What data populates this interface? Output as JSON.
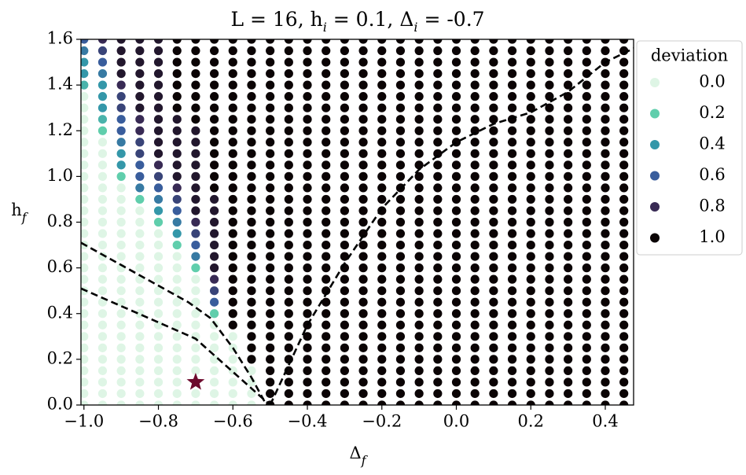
{
  "chart_data": {
    "type": "scatter-grid",
    "title": [
      "L = 16, h",
      "i",
      " = 0.1, Δ",
      "i",
      " = -0.7"
    ],
    "xlabel": [
      "Δ",
      "f"
    ],
    "ylabel": [
      "h",
      "f"
    ],
    "x": [
      -1,
      -0.95,
      -0.9,
      -0.85,
      -0.8,
      -0.75,
      -0.7,
      -0.65,
      -0.6,
      -0.55,
      -0.5,
      -0.45,
      -0.4,
      -0.35,
      -0.3,
      -0.25,
      -0.2,
      -0.15,
      -0.1,
      -0.05,
      0,
      0.05,
      0.1,
      0.15,
      0.2,
      0.25,
      0.3,
      0.35,
      0.4,
      0.45
    ],
    "y": [
      0,
      0.05,
      0.1,
      0.15,
      0.2,
      0.25,
      0.3,
      0.35,
      0.4,
      0.45,
      0.5,
      0.55,
      0.6,
      0.65,
      0.7,
      0.75,
      0.8,
      0.85,
      0.9,
      0.95,
      1,
      1.05,
      1.1,
      1.15,
      1.2,
      1.25,
      1.3,
      1.35,
      1.4,
      1.45,
      1.5,
      1.55,
      1.6
    ],
    "values": [
      [
        0,
        0,
        0,
        0,
        0,
        0,
        0,
        0,
        0,
        0,
        1,
        1,
        1,
        1,
        1,
        1,
        1,
        1,
        1,
        1,
        1,
        1,
        1,
        1,
        1,
        1,
        1,
        1,
        1,
        1
      ],
      [
        0,
        0,
        0,
        0,
        0,
        0,
        0,
        0,
        0,
        0,
        1,
        1,
        1,
        1,
        1,
        1,
        1,
        1,
        1,
        1,
        1,
        1,
        1,
        1,
        1,
        1,
        1,
        1,
        1,
        1
      ],
      [
        0,
        0,
        0,
        0,
        0,
        0,
        0,
        0,
        0,
        0,
        1,
        1,
        1,
        1,
        1,
        1,
        1,
        1,
        1,
        1,
        1,
        1,
        1,
        1,
        1,
        1,
        1,
        1,
        1,
        1
      ],
      [
        0,
        0,
        0,
        0,
        0,
        0,
        0,
        0,
        0,
        0,
        1,
        1,
        1,
        1,
        1,
        1,
        1,
        1,
        1,
        1,
        1,
        1,
        1,
        1,
        1,
        1,
        1,
        1,
        1,
        1
      ],
      [
        0,
        0,
        0,
        0,
        0,
        0,
        0,
        0,
        0,
        1,
        1,
        1,
        1,
        1,
        1,
        1,
        1,
        1,
        1,
        1,
        1,
        1,
        1,
        1,
        1,
        1,
        1,
        1,
        1,
        1
      ],
      [
        0,
        0,
        0,
        0,
        0,
        0,
        0,
        0,
        0,
        1,
        1,
        1,
        1,
        1,
        1,
        1,
        1,
        1,
        1,
        1,
        1,
        1,
        1,
        1,
        1,
        1,
        1,
        1,
        1,
        1
      ],
      [
        0,
        0,
        0,
        0,
        0,
        0,
        0,
        0,
        0,
        1,
        1,
        1,
        1,
        1,
        1,
        1,
        1,
        1,
        1,
        1,
        1,
        1,
        1,
        1,
        1,
        1,
        1,
        1,
        1,
        1
      ],
      [
        0,
        0,
        0,
        0,
        0,
        0,
        0,
        0,
        1,
        1,
        1,
        1,
        1,
        1,
        1,
        1,
        1,
        1,
        1,
        1,
        1,
        1,
        1,
        1,
        1,
        1,
        1,
        1,
        1,
        1
      ],
      [
        0,
        0,
        0,
        0,
        0,
        0,
        0,
        0.2,
        1,
        1,
        1,
        1,
        1,
        1,
        1,
        1,
        1,
        1,
        1,
        1,
        1,
        1,
        1,
        1,
        1,
        1,
        1,
        1,
        1,
        1
      ],
      [
        0,
        0,
        0,
        0,
        0,
        0,
        0,
        0.6,
        1,
        1,
        1,
        1,
        1,
        1,
        1,
        1,
        1,
        1,
        1,
        1,
        1,
        1,
        1,
        1,
        1,
        1,
        1,
        1,
        1,
        1
      ],
      [
        0,
        0,
        0,
        0,
        0,
        0,
        0,
        0.7,
        1,
        1,
        1,
        1,
        1,
        1,
        1,
        1,
        1,
        1,
        1,
        1,
        1,
        1,
        1,
        1,
        1,
        1,
        1,
        1,
        1,
        1
      ],
      [
        0,
        0,
        0,
        0,
        0,
        0,
        0,
        0.8,
        1,
        1,
        1,
        1,
        1,
        1,
        1,
        1,
        1,
        1,
        1,
        1,
        1,
        1,
        1,
        1,
        1,
        1,
        1,
        1,
        1,
        1
      ],
      [
        0,
        0,
        0,
        0,
        0,
        0,
        0.2,
        0.9,
        1,
        1,
        1,
        1,
        1,
        1,
        1,
        1,
        1,
        1,
        1,
        1,
        1,
        1,
        1,
        1,
        1,
        1,
        1,
        1,
        1,
        1
      ],
      [
        0,
        0,
        0,
        0,
        0,
        0,
        0.5,
        0.9,
        1,
        1,
        1,
        1,
        1,
        1,
        1,
        1,
        1,
        1,
        1,
        1,
        1,
        1,
        1,
        1,
        1,
        1,
        1,
        1,
        1,
        1
      ],
      [
        0,
        0,
        0,
        0,
        0,
        0.2,
        0.6,
        0.9,
        1,
        1,
        1,
        1,
        1,
        1,
        1,
        1,
        1,
        1,
        1,
        1,
        1,
        1,
        1,
        1,
        1,
        1,
        1,
        1,
        1,
        1
      ],
      [
        0,
        0,
        0,
        0,
        0,
        0.4,
        0.7,
        0.9,
        1,
        1,
        1,
        1,
        1,
        1,
        1,
        1,
        1,
        1,
        1,
        1,
        1,
        1,
        1,
        1,
        1,
        1,
        1,
        1,
        1,
        1
      ],
      [
        0,
        0,
        0,
        0,
        0.2,
        0.5,
        0.8,
        0.9,
        1,
        1,
        1,
        1,
        1,
        1,
        1,
        1,
        1,
        1,
        1,
        1,
        1,
        1,
        1,
        1,
        1,
        1,
        1,
        1,
        1,
        1
      ],
      [
        0,
        0,
        0,
        0,
        0.4,
        0.6,
        0.9,
        0.9,
        1,
        1,
        1,
        1,
        1,
        1,
        1,
        1,
        1,
        1,
        1,
        1,
        1,
        1,
        1,
        1,
        1,
        1,
        1,
        1,
        1,
        1
      ],
      [
        0,
        0,
        0,
        0.2,
        0.5,
        0.7,
        0.9,
        0.9,
        1,
        1,
        1,
        1,
        1,
        1,
        1,
        1,
        1,
        1,
        1,
        1,
        1,
        1,
        1,
        1,
        1,
        1,
        1,
        1,
        1,
        1
      ],
      [
        0,
        0,
        0,
        0.5,
        0.6,
        0.8,
        0.9,
        1,
        1,
        1,
        1,
        1,
        1,
        1,
        1,
        1,
        1,
        1,
        1,
        1,
        1,
        1,
        1,
        1,
        1,
        1,
        1,
        1,
        1,
        1
      ],
      [
        0,
        0,
        0.2,
        0.6,
        0.7,
        0.9,
        0.9,
        1,
        1,
        1,
        1,
        1,
        1,
        1,
        1,
        1,
        1,
        1,
        1,
        1,
        1,
        1,
        1,
        1,
        1,
        1,
        1,
        1,
        1,
        1
      ],
      [
        0,
        0,
        0.4,
        0.6,
        0.8,
        0.9,
        0.9,
        1,
        1,
        1,
        1,
        1,
        1,
        1,
        1,
        1,
        1,
        1,
        1,
        1,
        1,
        1,
        1,
        1,
        1,
        1,
        1,
        1,
        1,
        1
      ],
      [
        0,
        0,
        0.4,
        0.7,
        0.9,
        0.9,
        0.9,
        1,
        1,
        1,
        1,
        1,
        1,
        1,
        1,
        1,
        1,
        1,
        1,
        1,
        1,
        1,
        1,
        1,
        1,
        1,
        1,
        1,
        1,
        1
      ],
      [
        0,
        0,
        0.5,
        0.7,
        0.9,
        0.9,
        0.9,
        1,
        1,
        1,
        1,
        1,
        1,
        1,
        1,
        1,
        1,
        1,
        1,
        1,
        1,
        1,
        1,
        1,
        1,
        1,
        1,
        1,
        1,
        1
      ],
      [
        0,
        0.2,
        0.6,
        0.8,
        0.9,
        0.9,
        0.9,
        1,
        1,
        1,
        1,
        1,
        1,
        1,
        1,
        1,
        1,
        1,
        1,
        1,
        1,
        1,
        1,
        1,
        1,
        1,
        1,
        1,
        1,
        1
      ],
      [
        0,
        0.3,
        0.6,
        0.8,
        0.9,
        0.9,
        1,
        1,
        1,
        1,
        1,
        1,
        1,
        1,
        1,
        1,
        1,
        1,
        1,
        1,
        1,
        1,
        1,
        1,
        1,
        1,
        1,
        1,
        1,
        1
      ],
      [
        0,
        0.4,
        0.7,
        0.9,
        0.9,
        1,
        1,
        1,
        1,
        1,
        1,
        1,
        1,
        1,
        1,
        1,
        1,
        1,
        1,
        1,
        1,
        1,
        1,
        1,
        1,
        1,
        1,
        1,
        1,
        1
      ],
      [
        0,
        0.4,
        0.7,
        0.9,
        0.9,
        1,
        1,
        1,
        1,
        1,
        1,
        1,
        1,
        1,
        1,
        1,
        1,
        1,
        1,
        1,
        1,
        1,
        1,
        1,
        1,
        1,
        1,
        1,
        1,
        1
      ],
      [
        0.3,
        0.4,
        0.8,
        0.9,
        0.9,
        1,
        1,
        1,
        1,
        1,
        1,
        1,
        1,
        1,
        1,
        1,
        1,
        1,
        1,
        1,
        1,
        1,
        1,
        1,
        1,
        1,
        1,
        1,
        1,
        1
      ],
      [
        0.4,
        0.5,
        0.9,
        0.9,
        0.9,
        1,
        1,
        1,
        1,
        1,
        1,
        1,
        1,
        1,
        1,
        1,
        1,
        1,
        1,
        1,
        1,
        1,
        1,
        1,
        1,
        1,
        1,
        1,
        1,
        1
      ],
      [
        0.4,
        0.6,
        0.9,
        0.9,
        0.9,
        1,
        1,
        1,
        1,
        1,
        1,
        1,
        1,
        1,
        1,
        1,
        1,
        1,
        1,
        1,
        1,
        1,
        1,
        1,
        1,
        1,
        1,
        1,
        1,
        1
      ],
      [
        0.5,
        0.7,
        0.9,
        0.9,
        0.9,
        1,
        1,
        1,
        1,
        1,
        1,
        1,
        1,
        1,
        1,
        1,
        1,
        1,
        1,
        1,
        1,
        1,
        1,
        1,
        1,
        1,
        1,
        1,
        1,
        1
      ],
      [
        0.6,
        0.8,
        0.9,
        0.9,
        0.9,
        1,
        1,
        1,
        1,
        1,
        1,
        1,
        1,
        1,
        1,
        1,
        1,
        1,
        1,
        1,
        1,
        1,
        1,
        1,
        1,
        1,
        1,
        1,
        1,
        1
      ]
    ],
    "colormap": {
      "stops": [
        0,
        0.2,
        0.4,
        0.6,
        0.8,
        1
      ],
      "colors": [
        "#def5e5",
        "#60ceac",
        "#3497a9",
        "#395d9c",
        "#382a54",
        "#0b0405"
      ]
    },
    "legend": {
      "title": "deviation",
      "position": "outside upper right",
      "entries": [
        {
          "value": 0,
          "label": "0.0"
        },
        {
          "value": 0.2,
          "label": "0.2"
        },
        {
          "value": 0.4,
          "label": "0.4"
        },
        {
          "value": 0.6,
          "label": "0.6"
        },
        {
          "value": 0.8,
          "label": "0.8"
        },
        {
          "value": 1,
          "label": "1.0"
        }
      ]
    },
    "lines": [
      {
        "color": "#000000",
        "style": "dashed",
        "x": [
          -1.008,
          -0.72,
          -0.66,
          -0.6,
          -0.55,
          -0.52,
          -0.51
        ],
        "y": [
          0.71,
          0.45,
          0.38,
          0.25,
          0.12,
          0.03,
          0
        ]
      },
      {
        "color": "#000000",
        "style": "dashed",
        "x": [
          -1.008,
          -0.7,
          -0.5
        ],
        "y": [
          0.51,
          0.29,
          0
        ]
      },
      {
        "color": "#000000",
        "style": "dashed",
        "x": [
          -0.5,
          -0.4,
          -0.3,
          -0.2,
          -0.1,
          0,
          0.1,
          0.2,
          0.3,
          0.4,
          0.476
        ],
        "y": [
          0,
          0.35,
          0.62,
          0.86,
          1.03,
          1.15,
          1.23,
          1.28,
          1.37,
          1.5,
          1.56
        ]
      }
    ],
    "marker": {
      "x": -0.7,
      "y": 0.1,
      "color": "#6d0a2d"
    },
    "xlim": [
      -1.008,
      0.476
    ],
    "ylim": [
      0,
      1.6
    ],
    "xticks": [
      {
        "value": -1,
        "label": "−1.0"
      },
      {
        "value": -0.8,
        "label": "−0.8"
      },
      {
        "value": -0.6,
        "label": "−0.6"
      },
      {
        "value": -0.4,
        "label": "−0.4"
      },
      {
        "value": -0.2,
        "label": "−0.2"
      },
      {
        "value": 0,
        "label": "0.0"
      },
      {
        "value": 0.2,
        "label": "0.2"
      },
      {
        "value": 0.4,
        "label": "0.4"
      }
    ],
    "yticks": [
      {
        "value": 0,
        "label": "0.0"
      },
      {
        "value": 0.2,
        "label": "0.2"
      },
      {
        "value": 0.4,
        "label": "0.4"
      },
      {
        "value": 0.6,
        "label": "0.6"
      },
      {
        "value": 0.8,
        "label": "0.8"
      },
      {
        "value": 1,
        "label": "1.0"
      },
      {
        "value": 1.2,
        "label": "1.2"
      },
      {
        "value": 1.4,
        "label": "1.4"
      },
      {
        "value": 1.6,
        "label": "1.6"
      }
    ]
  }
}
